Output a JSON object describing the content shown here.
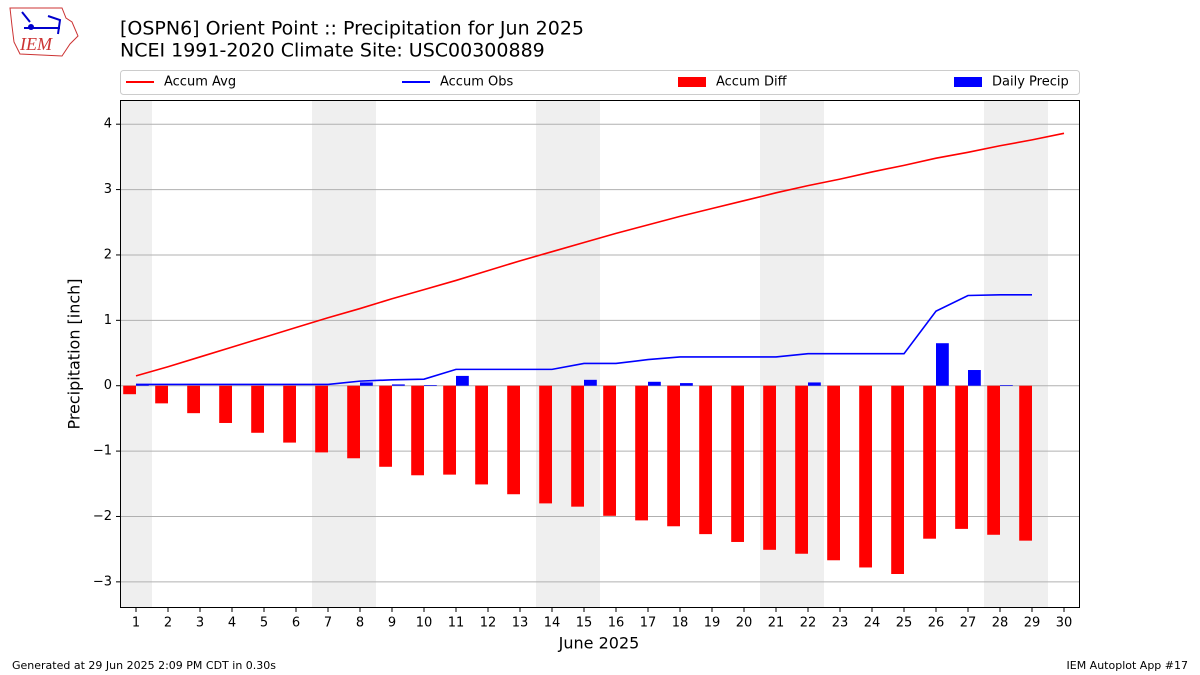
{
  "chart_data": {
    "type": "line_bar",
    "title": "[OSPN6] Orient Point :: Precipitation for Jun 2025",
    "subtitle": "NCEI 1991-2020 Climate Site: USC00300889",
    "logo_text": "IEM",
    "xlabel": "June 2025",
    "ylabel": "Precipitation [inch]",
    "footer_left": "Generated at 29 Jun 2025 2:09 PM CDT in 0.30s",
    "footer_right": "IEM Autoplot App #17",
    "x": [
      1,
      2,
      3,
      4,
      5,
      6,
      7,
      8,
      9,
      10,
      11,
      12,
      13,
      14,
      15,
      16,
      17,
      18,
      19,
      20,
      21,
      22,
      23,
      24,
      25,
      26,
      27,
      28,
      29,
      30
    ],
    "xlim": [
      0.5,
      30.5
    ],
    "xticks": [
      1,
      2,
      3,
      4,
      5,
      6,
      7,
      8,
      9,
      10,
      11,
      12,
      13,
      14,
      15,
      16,
      17,
      18,
      19,
      20,
      21,
      22,
      23,
      24,
      25,
      26,
      27,
      28,
      29,
      30
    ],
    "ylim": [
      -3.4,
      4.37
    ],
    "yticks": [
      {
        "value": -3,
        "label": "−3"
      },
      {
        "value": -2,
        "label": "−2"
      },
      {
        "value": -1,
        "label": "−1"
      },
      0,
      1,
      2,
      3,
      4
    ],
    "grid": true,
    "series": [
      {
        "name": "Accum Avg",
        "kind": "line",
        "color": "#ff0000",
        "values": [
          0.15,
          0.29,
          0.44,
          0.59,
          0.74,
          0.89,
          1.04,
          1.18,
          1.33,
          1.47,
          1.61,
          1.76,
          1.91,
          2.05,
          2.19,
          2.33,
          2.46,
          2.59,
          2.71,
          2.83,
          2.95,
          3.06,
          3.16,
          3.27,
          3.37,
          3.48,
          3.57,
          3.67,
          3.76,
          3.86
        ]
      },
      {
        "name": "Accum Obs",
        "kind": "line",
        "color": "#0000ff",
        "values": [
          0.02,
          0.02,
          0.02,
          0.02,
          0.02,
          0.02,
          0.02,
          0.07,
          0.09,
          0.1,
          0.25,
          0.25,
          0.25,
          0.25,
          0.34,
          0.34,
          0.4,
          0.44,
          0.44,
          0.44,
          0.44,
          0.49,
          0.49,
          0.49,
          0.49,
          1.14,
          1.38,
          1.39,
          1.39,
          null
        ]
      },
      {
        "name": "Accum Diff",
        "kind": "bar",
        "color": "#ff0000",
        "values": [
          -0.13,
          -0.27,
          -0.42,
          -0.57,
          -0.72,
          -0.87,
          -1.02,
          -1.11,
          -1.24,
          -1.37,
          -1.36,
          -1.51,
          -1.66,
          -1.8,
          -1.85,
          -1.99,
          -2.06,
          -2.15,
          -2.27,
          -2.39,
          -2.51,
          -2.57,
          -2.67,
          -2.78,
          -2.88,
          -2.34,
          -2.19,
          -2.28,
          -2.37,
          null
        ]
      },
      {
        "name": "Daily Precip",
        "kind": "bar",
        "color": "#0000ff",
        "values": [
          0.02,
          0,
          0,
          0,
          0,
          0,
          0,
          0.05,
          0.02,
          0.01,
          0.15,
          0,
          0,
          0,
          0.09,
          0,
          0.06,
          0.04,
          0,
          0,
          0,
          0.05,
          0,
          0,
          0,
          0.65,
          0.24,
          0.01,
          0,
          null
        ]
      }
    ]
  }
}
